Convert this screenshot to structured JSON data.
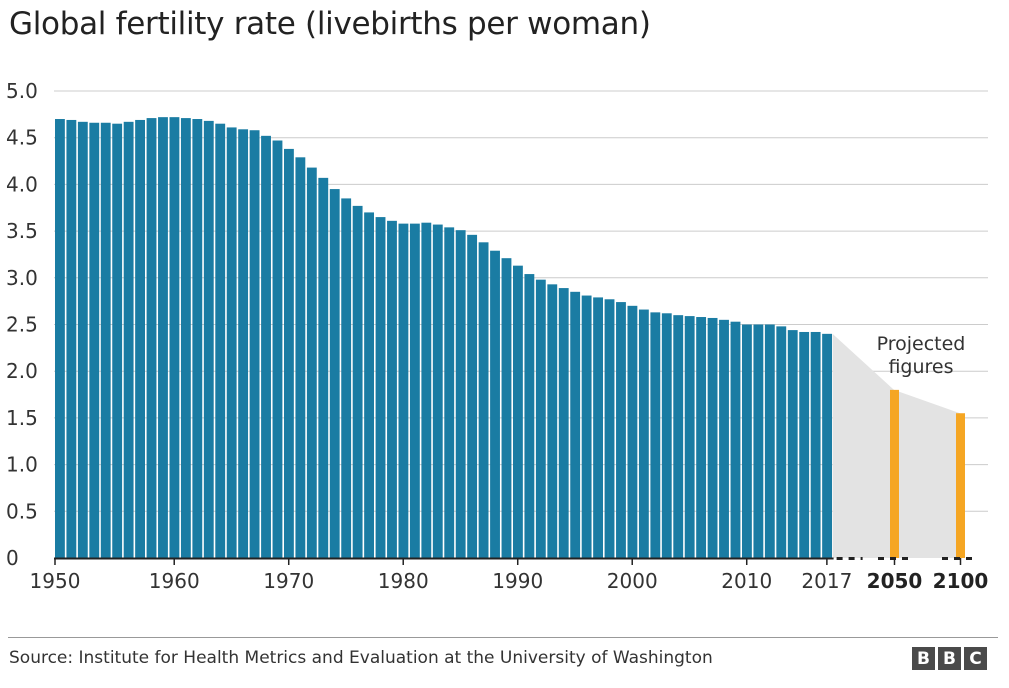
{
  "title": "Global fertility rate (livebirths per woman)",
  "source": "Source: Institute for Health Metrics and Evaluation at the University of Washington",
  "logo": [
    "B",
    "B",
    "C"
  ],
  "colors": {
    "historical_bar": "#1a7ca3",
    "projection_bar": "#f5a623",
    "projection_area": "#e3e3e3",
    "grid": "#cccccc",
    "axis": "#222222"
  },
  "chart_data": {
    "type": "bar",
    "title": "Global fertility rate (livebirths per woman)",
    "ylim": [
      0,
      5.0
    ],
    "y_ticks": [
      "0",
      "0.5",
      "1.0",
      "1.5",
      "2.0",
      "2.5",
      "3.0",
      "3.5",
      "4.0",
      "4.5",
      "5.0"
    ],
    "grid": true,
    "x_tick_labels": [
      "1950",
      "1960",
      "1970",
      "1980",
      "1990",
      "2000",
      "2010",
      "2017"
    ],
    "projected_tick_labels": [
      "2050",
      "2100"
    ],
    "annotation": [
      "Projected",
      "figures"
    ],
    "series": [
      {
        "x": [
          1950,
          1951,
          1952,
          1953,
          1954,
          1955,
          1956,
          1957,
          1958,
          1959,
          1960,
          1961,
          1962,
          1963,
          1964,
          1965,
          1966,
          1967,
          1968,
          1969,
          1970,
          1971,
          1972,
          1973,
          1974,
          1975,
          1976,
          1977,
          1978,
          1979,
          1980,
          1981,
          1982,
          1983,
          1984,
          1985,
          1986,
          1987,
          1988,
          1989,
          1990,
          1991,
          1992,
          1993,
          1994,
          1995,
          1996,
          1997,
          1998,
          1999,
          2000,
          2001,
          2002,
          2003,
          2004,
          2005,
          2006,
          2007,
          2008,
          2009,
          2010,
          2011,
          2012,
          2013,
          2014,
          2015,
          2016,
          2017
        ],
        "values": [
          4.7,
          4.69,
          4.67,
          4.66,
          4.66,
          4.65,
          4.67,
          4.69,
          4.71,
          4.72,
          4.72,
          4.71,
          4.7,
          4.68,
          4.65,
          4.61,
          4.59,
          4.58,
          4.52,
          4.47,
          4.38,
          4.29,
          4.18,
          4.07,
          3.95,
          3.85,
          3.77,
          3.7,
          3.65,
          3.61,
          3.58,
          3.58,
          3.59,
          3.57,
          3.54,
          3.51,
          3.46,
          3.38,
          3.29,
          3.21,
          3.13,
          3.04,
          2.98,
          2.93,
          2.89,
          2.85,
          2.81,
          2.79,
          2.77,
          2.74,
          2.7,
          2.66,
          2.63,
          2.62,
          2.6,
          2.59,
          2.58,
          2.57,
          2.55,
          2.53,
          2.5,
          2.5,
          2.5,
          2.48,
          2.44,
          2.42,
          2.42,
          2.4
        ]
      },
      {
        "x": [
          2050,
          2100
        ],
        "values": [
          1.8,
          1.55
        ]
      }
    ]
  }
}
